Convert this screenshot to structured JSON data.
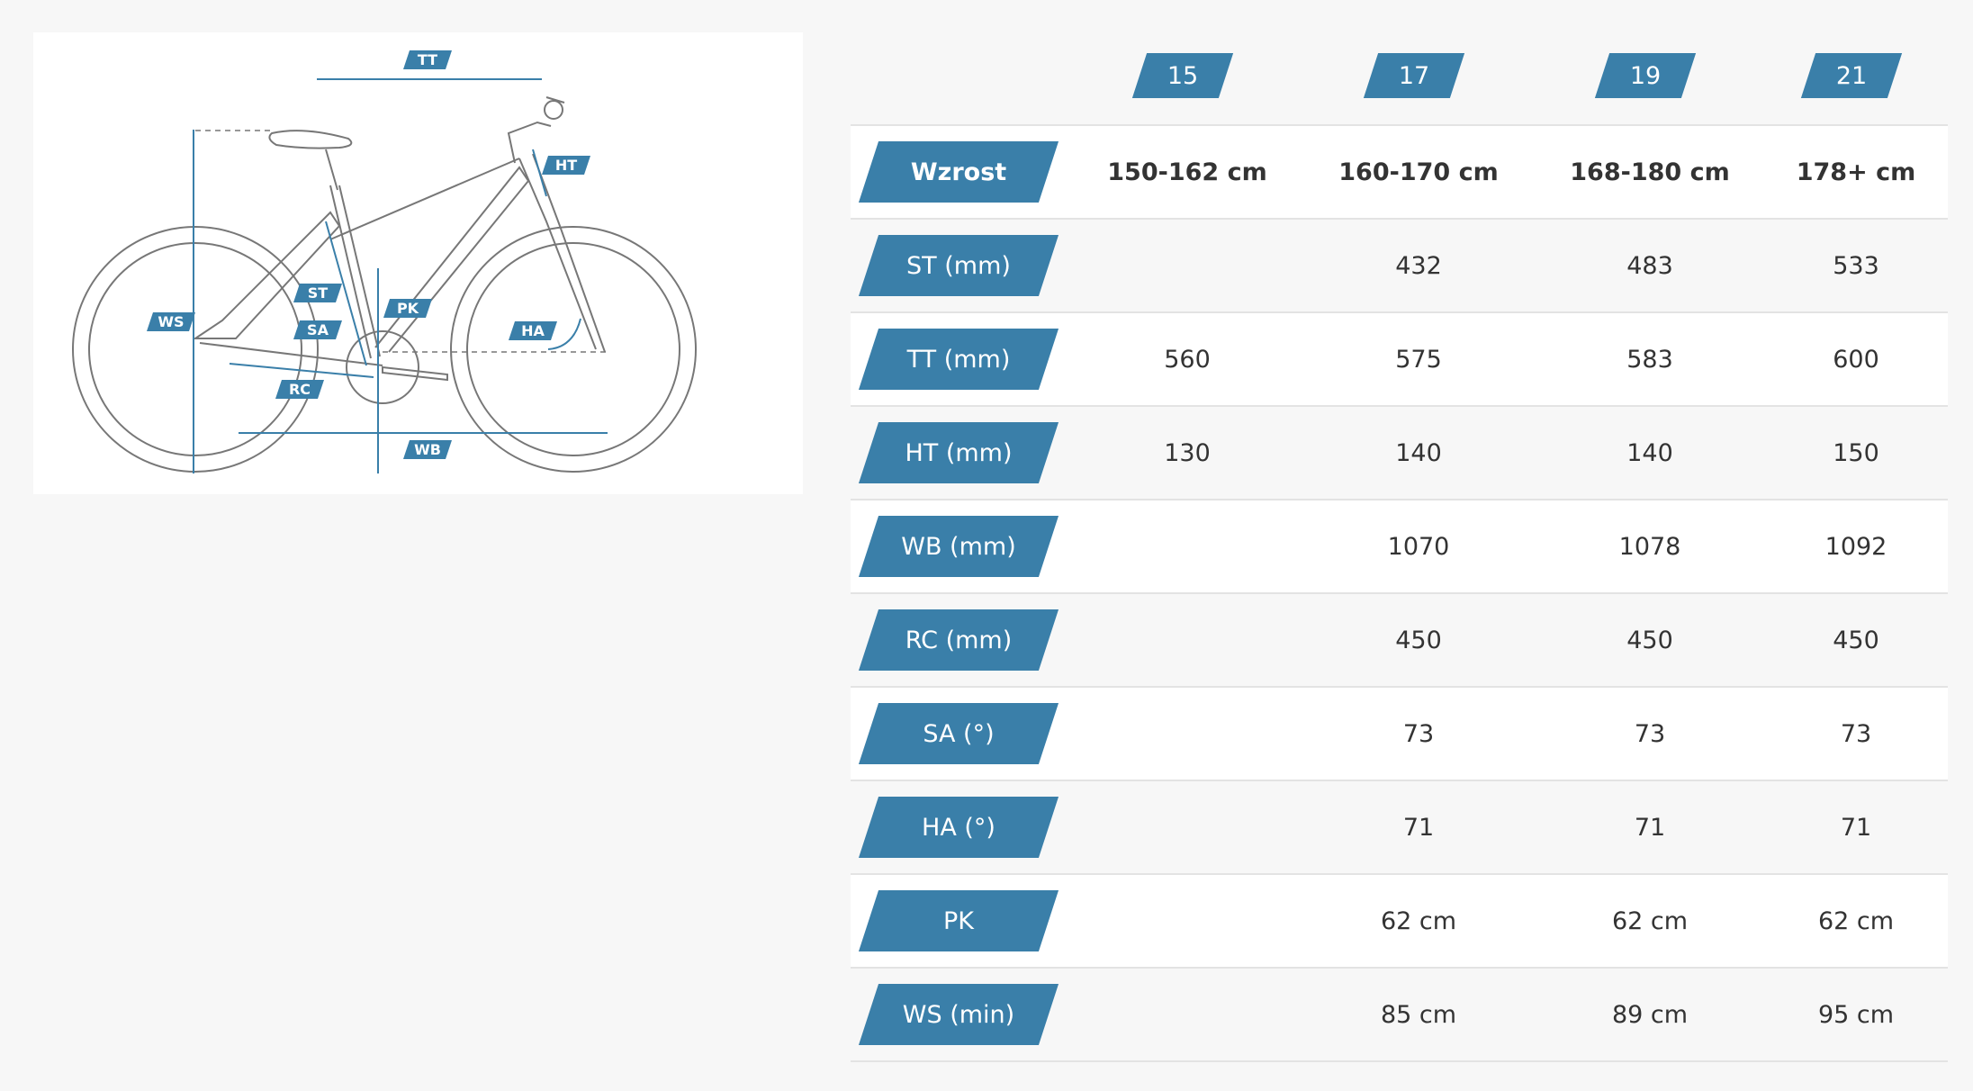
{
  "diagram": {
    "labels": {
      "tt": "TT",
      "ht": "HT",
      "st": "ST",
      "sa": "SA",
      "pk": "PK",
      "ws": "WS",
      "ha": "HA",
      "rc": "RC",
      "wb": "WB"
    },
    "colors": {
      "accent": "#3a7fa9",
      "line": "#777777"
    }
  },
  "table": {
    "sizes": [
      "15",
      "17",
      "19",
      "21"
    ],
    "rows": [
      {
        "label": "Wzrost",
        "values": [
          "150-162 cm",
          "160-170 cm",
          "168-180 cm",
          "178+ cm"
        ]
      },
      {
        "label": "ST (mm)",
        "values": [
          "",
          "432",
          "483",
          "533"
        ]
      },
      {
        "label": "TT (mm)",
        "values": [
          "560",
          "575",
          "583",
          "600"
        ]
      },
      {
        "label": "HT (mm)",
        "values": [
          "130",
          "140",
          "140",
          "150"
        ]
      },
      {
        "label": "WB (mm)",
        "values": [
          "",
          "1070",
          "1078",
          "1092"
        ]
      },
      {
        "label": "RC (mm)",
        "values": [
          "",
          "450",
          "450",
          "450"
        ]
      },
      {
        "label": "SA (°)",
        "values": [
          "",
          "73",
          "73",
          "73"
        ]
      },
      {
        "label": "HA (°)",
        "values": [
          "",
          "71",
          "71",
          "71"
        ]
      },
      {
        "label": "PK",
        "values": [
          "",
          "62 cm",
          "62 cm",
          "62 cm"
        ]
      },
      {
        "label": "WS (min)",
        "values": [
          "",
          "85 cm",
          "89 cm",
          "95 cm"
        ]
      }
    ]
  }
}
